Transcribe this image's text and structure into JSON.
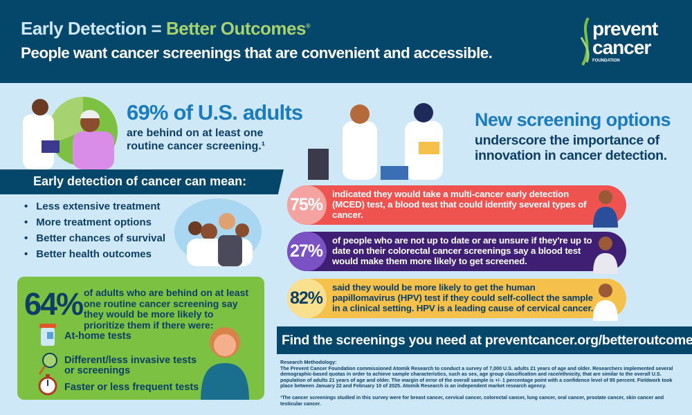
{
  "header": {
    "title_part1": "Early Detection",
    "title_equals": "=",
    "title_part2": "Better Outcomes",
    "title_mark": "®",
    "subtitle": "People want cancer screenings that are convenient and accessible.",
    "logo": {
      "line1": "prevent",
      "line2": "cancer",
      "line3": "FOUNDATION"
    }
  },
  "left": {
    "stat_headline": "69% of U.S. adults",
    "stat_text": "are behind on at least one routine cancer screening.¹",
    "pie_percent": 69,
    "banner": "Early detection of cancer can mean:",
    "bullets": [
      "Less extensive treatment",
      "More treatment options",
      "Better chances of survival",
      "Better health outcomes"
    ],
    "green_box": {
      "percent": "64%",
      "text": "of adults who are behind on at least one routine cancer screening say they would be more likely to prioritize them if there were:",
      "items": [
        {
          "icon": "specimen-cup-icon",
          "label": "At-home tests"
        },
        {
          "icon": "magnifying-glass-icon",
          "label": "Different/less invasive tests or screenings"
        },
        {
          "icon": "stopwatch-icon",
          "label": "Faster or less frequent tests"
        }
      ]
    }
  },
  "right": {
    "headline": "New screening options",
    "subtext": "underscore the importance of innovation in cancer detection.",
    "cards": [
      {
        "percent": "75%",
        "text": "indicated they would take a multi-cancer early detection (MCED) test, a blood test that could identify several types of cancer.",
        "color": "#ef5350",
        "circle": "#f4a3a0",
        "text_color": "#ffffff"
      },
      {
        "percent": "27%",
        "text": "of people who are not up to date or are unsure if they're up to date on their colorectal cancer screenings say a blood test would make them more likely to get screened.",
        "color": "#3f1f73",
        "circle": "#7b52c4",
        "text_color": "#ffffff"
      },
      {
        "percent": "82%",
        "text": "said they would be more likely to get the human papillomavirus (HPV) test if they could self-collect the sample in a clinical setting. HPV is a leading cause of cervical cancer.",
        "color": "#f5c14a",
        "circle": "#f9e08e",
        "text_color": "#0d3f66"
      }
    ],
    "cta": "Find the screenings you need at preventcancer.org/betteroutcomes."
  },
  "methodology": {
    "heading": "Research Methodology:",
    "body": "The Prevent Cancer Foundation commissioned Atomik Research to conduct a survey of 7,000 U.S. adults 21 years of age and older. Researchers implemented several demographic-based quotas in order to achieve sample characteristics, such as sex, age group classification and race/ethnicity, that are similar to the overall U.S. population of adults 21 years of age and older. The margin of error of the overall sample is +/- 1 percentage point with a confidence level of 95 percent. Fieldwork took place between January 22 and February 10 of 2025. Atomik Research is an independent market research agency.",
    "footnote": "¹The cancer screenings studied in this survey were for breast cancer, cervical cancer, colorectal cancer, lung cancer, oral cancer, prostate cancer, skin cancer and testicular cancer."
  },
  "colors": {
    "navy": "#05466b",
    "background": "#cfe8f7",
    "blue": "#1a7bbf",
    "green": "#7cc142",
    "light_green": "#a6d36f",
    "dark_text": "#0d3f66"
  }
}
